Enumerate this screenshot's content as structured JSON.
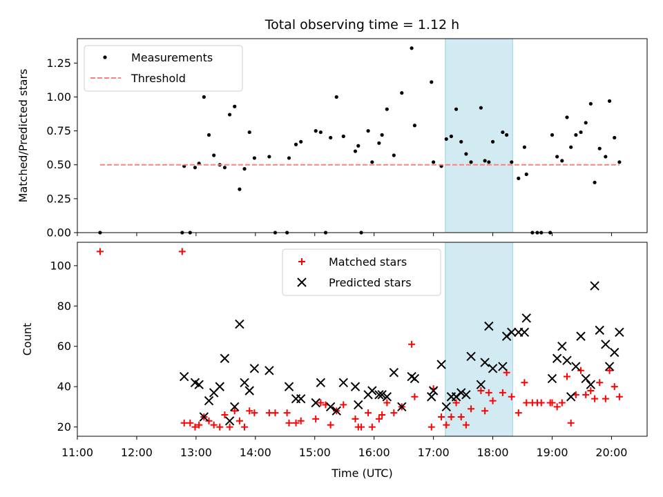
{
  "chart_data": [
    {
      "type": "scatter",
      "title": "Total observing time = 1.12 h",
      "ylabel": "Matched/Predicted stars",
      "xlabel": "",
      "xlim": [
        "11:00",
        "20:36"
      ],
      "ylim": [
        0,
        1.43
      ],
      "yticks": [
        "0.00",
        "0.25",
        "0.50",
        "0.75",
        "1.00",
        "1.25"
      ],
      "highlight_band": {
        "x": [
          "17:12",
          "18:20"
        ],
        "color": "#add8e6"
      },
      "legend_position": "upper left",
      "series": [
        {
          "name": "Measurements",
          "marker": "dot",
          "color": "#000000",
          "points": [
            [
              "11:23",
              0.0
            ],
            [
              "12:46",
              0.0
            ],
            [
              "12:48",
              0.49
            ],
            [
              "12:54",
              0.0
            ],
            [
              "12:59",
              0.48
            ],
            [
              "13:03",
              0.51
            ],
            [
              "13:08",
              1.0
            ],
            [
              "13:13",
              0.72
            ],
            [
              "13:18",
              0.57
            ],
            [
              "13:24",
              0.5
            ],
            [
              "13:29",
              0.48
            ],
            [
              "13:34",
              0.87
            ],
            [
              "13:39",
              0.93
            ],
            [
              "13:44",
              0.32
            ],
            [
              "13:49",
              0.47
            ],
            [
              "13:54",
              0.74
            ],
            [
              "13:59",
              0.55
            ],
            [
              "14:14",
              0.56
            ],
            [
              "14:20",
              0.0
            ],
            [
              "14:32",
              0.0
            ],
            [
              "14:34",
              0.55
            ],
            [
              "14:41",
              0.65
            ],
            [
              "14:46",
              0.67
            ],
            [
              "15:01",
              0.75
            ],
            [
              "15:06",
              0.74
            ],
            [
              "15:11",
              0.0
            ],
            [
              "15:16",
              0.7
            ],
            [
              "15:22",
              1.0
            ],
            [
              "15:29",
              0.71
            ],
            [
              "15:41",
              0.6
            ],
            [
              "15:44",
              0.64
            ],
            [
              "15:47",
              0.0
            ],
            [
              "15:54",
              0.75
            ],
            [
              "15:58",
              0.52
            ],
            [
              "16:05",
              0.66
            ],
            [
              "16:08",
              0.72
            ],
            [
              "16:13",
              0.91
            ],
            [
              "16:20",
              0.57
            ],
            [
              "16:28",
              1.03
            ],
            [
              "16:38",
              1.36
            ],
            [
              "16:41",
              0.79
            ],
            [
              "16:58",
              1.11
            ],
            [
              "17:00",
              0.52
            ],
            [
              "17:08",
              0.49
            ],
            [
              "17:13",
              0.69
            ],
            [
              "17:18",
              0.71
            ],
            [
              "17:23",
              0.91
            ],
            [
              "17:28",
              0.67
            ],
            [
              "17:33",
              0.58
            ],
            [
              "17:38",
              0.52
            ],
            [
              "17:48",
              0.92
            ],
            [
              "17:52",
              0.53
            ],
            [
              "17:56",
              0.52
            ],
            [
              "18:00",
              0.67
            ],
            [
              "18:10",
              0.74
            ],
            [
              "18:14",
              0.72
            ],
            [
              "18:19",
              0.52
            ],
            [
              "18:26",
              0.4
            ],
            [
              "18:32",
              0.63
            ],
            [
              "18:34",
              0.43
            ],
            [
              "18:40",
              0.0
            ],
            [
              "18:45",
              0.0
            ],
            [
              "18:49",
              0.0
            ],
            [
              "18:58",
              0.0
            ],
            [
              "19:00",
              0.72
            ],
            [
              "19:05",
              0.56
            ],
            [
              "19:10",
              0.53
            ],
            [
              "19:15",
              0.85
            ],
            [
              "19:19",
              0.63
            ],
            [
              "19:24",
              0.72
            ],
            [
              "19:29",
              0.74
            ],
            [
              "19:34",
              0.81
            ],
            [
              "19:39",
              0.95
            ],
            [
              "19:43",
              0.37
            ],
            [
              "19:48",
              0.62
            ],
            [
              "19:54",
              0.56
            ],
            [
              "19:58",
              0.97
            ],
            [
              "20:03",
              0.7
            ],
            [
              "20:08",
              0.52
            ]
          ]
        },
        {
          "name": "Threshold",
          "marker": "dashed-line",
          "color": "#ff7f7f",
          "points": [
            [
              "11:23",
              0.5
            ],
            [
              "20:08",
              0.5
            ]
          ]
        }
      ]
    },
    {
      "type": "scatter",
      "title": "",
      "ylabel": "Count",
      "xlabel": "Time (UTC)",
      "xlim": [
        "11:00",
        "20:36"
      ],
      "ylim": [
        15.4,
        111.6
      ],
      "yticks": [
        "20",
        "40",
        "60",
        "80",
        "100"
      ],
      "xticks": [
        "11:00",
        "12:00",
        "13:00",
        "14:00",
        "15:00",
        "16:00",
        "17:00",
        "18:00",
        "19:00",
        "20:00"
      ],
      "highlight_band": {
        "x": [
          "17:12",
          "18:20"
        ],
        "color": "#add8e6"
      },
      "legend_position": "upper center",
      "series": [
        {
          "name": "Matched stars",
          "marker": "plus",
          "color": "#ff0000",
          "points": [
            [
              "11:23",
              107
            ],
            [
              "12:46",
              107
            ],
            [
              "12:48",
              22
            ],
            [
              "12:54",
              22
            ],
            [
              "12:59",
              20
            ],
            [
              "13:03",
              21
            ],
            [
              "13:08",
              25
            ],
            [
              "13:13",
              23
            ],
            [
              "13:18",
              21
            ],
            [
              "13:24",
              20
            ],
            [
              "13:29",
              26
            ],
            [
              "13:34",
              20
            ],
            [
              "13:39",
              28
            ],
            [
              "13:44",
              23
            ],
            [
              "13:49",
              20
            ],
            [
              "13:54",
              28
            ],
            [
              "13:59",
              27
            ],
            [
              "14:14",
              27
            ],
            [
              "14:20",
              27
            ],
            [
              "14:32",
              27
            ],
            [
              "14:34",
              22
            ],
            [
              "14:41",
              22
            ],
            [
              "14:46",
              23
            ],
            [
              "15:01",
              24
            ],
            [
              "15:06",
              32
            ],
            [
              "15:11",
              31
            ],
            [
              "15:16",
              21
            ],
            [
              "15:22",
              28
            ],
            [
              "15:29",
              31
            ],
            [
              "15:41",
              24
            ],
            [
              "15:44",
              20
            ],
            [
              "15:47",
              20
            ],
            [
              "15:54",
              27
            ],
            [
              "15:58",
              20
            ],
            [
              "16:05",
              24
            ],
            [
              "16:08",
              26
            ],
            [
              "16:13",
              32
            ],
            [
              "16:20",
              27
            ],
            [
              "16:28",
              30
            ],
            [
              "16:38",
              61
            ],
            [
              "16:41",
              35
            ],
            [
              "16:58",
              20
            ],
            [
              "17:00",
              39
            ],
            [
              "17:08",
              25
            ],
            [
              "17:13",
              21
            ],
            [
              "17:18",
              25
            ],
            [
              "17:23",
              32
            ],
            [
              "17:28",
              25
            ],
            [
              "17:33",
              21
            ],
            [
              "17:38",
              29
            ],
            [
              "17:48",
              38
            ],
            [
              "17:52",
              28
            ],
            [
              "17:56",
              37
            ],
            [
              "18:00",
              33
            ],
            [
              "18:10",
              37
            ],
            [
              "18:14",
              47
            ],
            [
              "18:19",
              35
            ],
            [
              "18:26",
              27
            ],
            [
              "18:32",
              42
            ],
            [
              "18:34",
              32
            ],
            [
              "18:40",
              32
            ],
            [
              "18:45",
              32
            ],
            [
              "18:49",
              32
            ],
            [
              "18:58",
              32
            ],
            [
              "19:00",
              32
            ],
            [
              "19:05",
              30
            ],
            [
              "19:10",
              32
            ],
            [
              "19:15",
              45
            ],
            [
              "19:19",
              22
            ],
            [
              "19:24",
              36
            ],
            [
              "19:29",
              48
            ],
            [
              "19:34",
              36
            ],
            [
              "19:39",
              38
            ],
            [
              "19:43",
              34
            ],
            [
              "19:48",
              42
            ],
            [
              "19:54",
              34
            ],
            [
              "19:58",
              48
            ],
            [
              "20:03",
              40
            ],
            [
              "20:08",
              35
            ]
          ]
        },
        {
          "name": "Predicted stars",
          "marker": "x",
          "color": "#000000",
          "points": [
            [
              "12:48",
              45
            ],
            [
              "12:59",
              42
            ],
            [
              "13:03",
              41
            ],
            [
              "13:08",
              25
            ],
            [
              "13:13",
              33
            ],
            [
              "13:18",
              37
            ],
            [
              "13:24",
              40
            ],
            [
              "13:29",
              54
            ],
            [
              "13:34",
              23
            ],
            [
              "13:39",
              30
            ],
            [
              "13:44",
              71
            ],
            [
              "13:49",
              42
            ],
            [
              "13:54",
              38
            ],
            [
              "13:59",
              49
            ],
            [
              "14:14",
              48
            ],
            [
              "14:34",
              40
            ],
            [
              "14:41",
              34
            ],
            [
              "14:46",
              34
            ],
            [
              "15:01",
              32
            ],
            [
              "15:06",
              42
            ],
            [
              "15:16",
              30
            ],
            [
              "15:22",
              28
            ],
            [
              "15:29",
              42
            ],
            [
              "15:41",
              40
            ],
            [
              "15:44",
              31
            ],
            [
              "15:54",
              36
            ],
            [
              "15:58",
              38
            ],
            [
              "16:05",
              36
            ],
            [
              "16:08",
              36
            ],
            [
              "16:13",
              35
            ],
            [
              "16:20",
              47
            ],
            [
              "16:28",
              30
            ],
            [
              "16:38",
              45
            ],
            [
              "16:41",
              44
            ],
            [
              "16:58",
              35
            ],
            [
              "17:00",
              38
            ],
            [
              "17:08",
              51
            ],
            [
              "17:13",
              30
            ],
            [
              "17:18",
              35
            ],
            [
              "17:23",
              35
            ],
            [
              "17:28",
              37
            ],
            [
              "17:33",
              36
            ],
            [
              "17:38",
              55
            ],
            [
              "17:48",
              41
            ],
            [
              "17:52",
              52
            ],
            [
              "17:56",
              70
            ],
            [
              "18:00",
              49
            ],
            [
              "18:10",
              50
            ],
            [
              "18:14",
              65
            ],
            [
              "18:19",
              67
            ],
            [
              "18:26",
              67
            ],
            [
              "18:32",
              67
            ],
            [
              "18:34",
              74
            ],
            [
              "19:00",
              44
            ],
            [
              "19:05",
              54
            ],
            [
              "19:10",
              60
            ],
            [
              "19:15",
              53
            ],
            [
              "19:19",
              35
            ],
            [
              "19:24",
              50
            ],
            [
              "19:29",
              65
            ],
            [
              "19:34",
              44
            ],
            [
              "19:39",
              41
            ],
            [
              "19:43",
              90
            ],
            [
              "19:48",
              68
            ],
            [
              "19:54",
              61
            ],
            [
              "19:58",
              50
            ],
            [
              "20:03",
              57
            ],
            [
              "20:08",
              67
            ]
          ]
        }
      ]
    }
  ]
}
